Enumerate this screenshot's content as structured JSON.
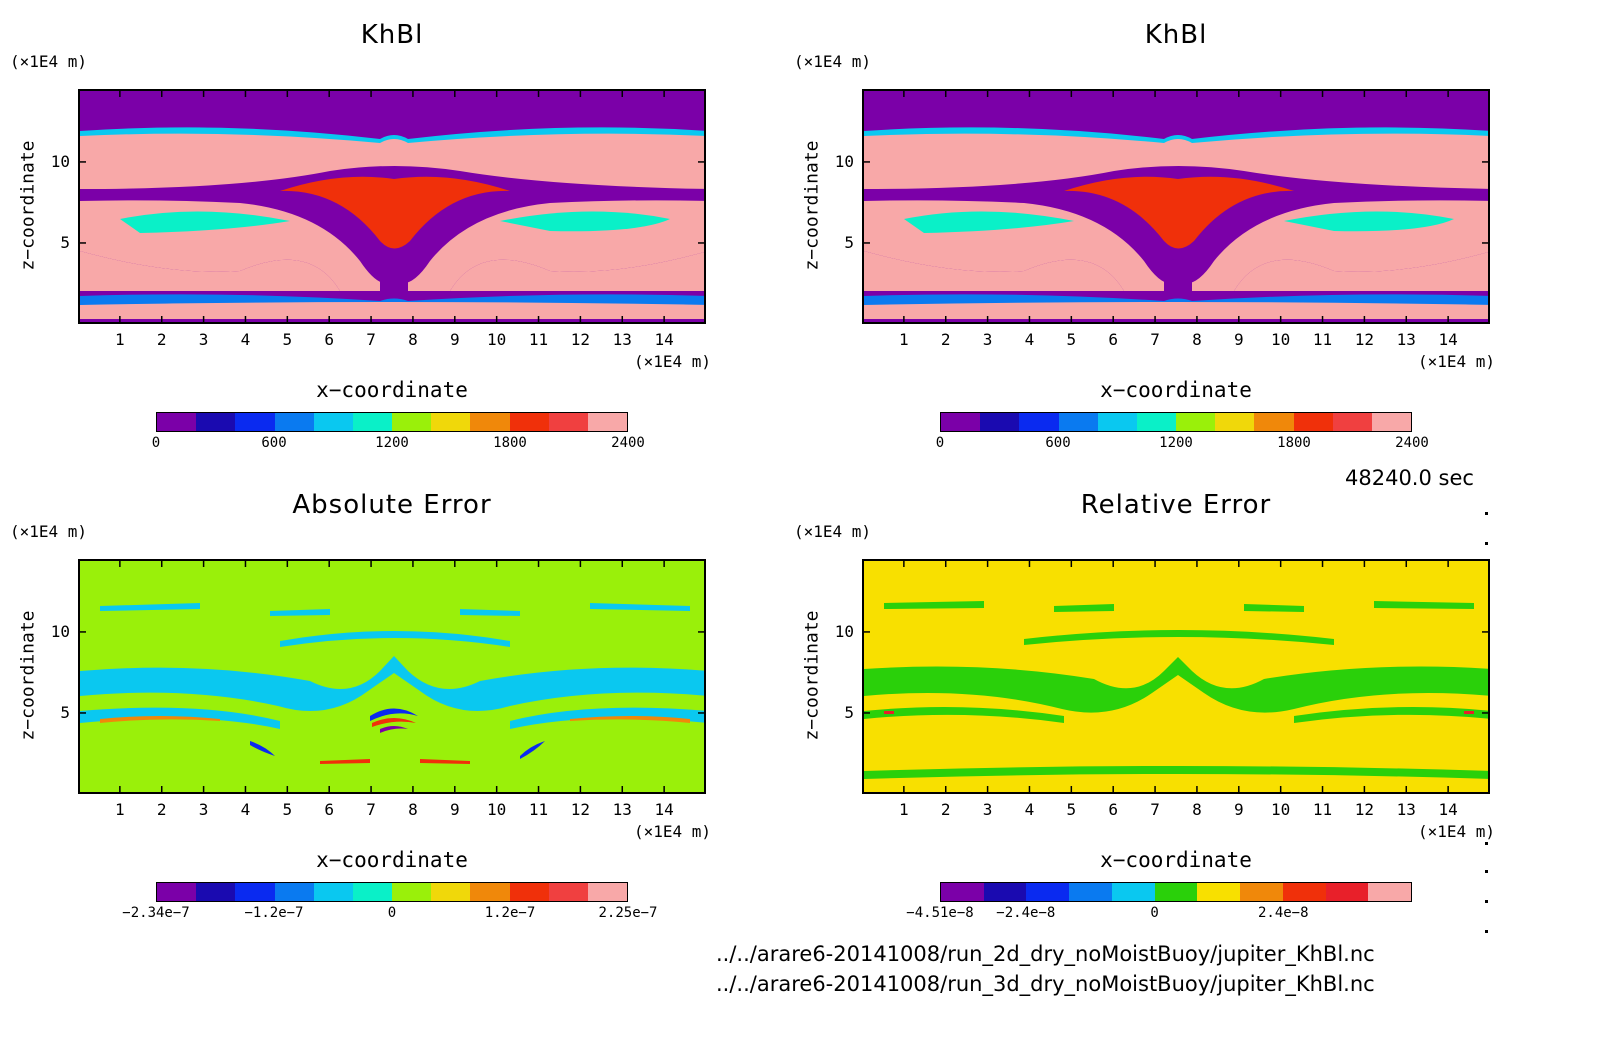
{
  "time_label": "48240.0 sec",
  "file_paths": [
    "../../arare6-20141008/run_2d_dry_noMoistBuoy/jupiter_KhBl.nc",
    "../../arare6-20141008/run_3d_dry_noMoistBuoy/jupiter_KhBl.nc"
  ],
  "chart_data": [
    {
      "type": "heatmap",
      "title": "KhBl",
      "xlabel": "x−coordinate",
      "ylabel": "z−coordinate",
      "x_unit": "(×1E4 m)",
      "y_unit": "(×1E4 m)",
      "xlim": [
        0,
        15
      ],
      "ylim": [
        0,
        14.5
      ],
      "x_ticks": [
        "1",
        "2",
        "3",
        "4",
        "5",
        "6",
        "7",
        "8",
        "9",
        "10",
        "11",
        "12",
        "13",
        "14"
      ],
      "y_ticks": [
        "5",
        "10"
      ],
      "colorbar_colors": [
        "#7b00a8",
        "#1a0ab0",
        "#0a2af0",
        "#0a7af0",
        "#0ac8f0",
        "#0af0c8",
        "#9af00a",
        "#f0d80a",
        "#f0880a",
        "#f0300a",
        "#f04040",
        "#f8a8a8"
      ],
      "colorbar_labels": [
        "0",
        "600",
        "1200",
        "1800",
        "2400"
      ],
      "pattern": "khbl"
    },
    {
      "type": "heatmap",
      "title": "KhBl",
      "xlabel": "x−coordinate",
      "ylabel": "z−coordinate",
      "x_unit": "(×1E4 m)",
      "y_unit": "(×1E4 m)",
      "xlim": [
        0,
        15
      ],
      "ylim": [
        0,
        14.5
      ],
      "x_ticks": [
        "1",
        "2",
        "3",
        "4",
        "5",
        "6",
        "7",
        "8",
        "9",
        "10",
        "11",
        "12",
        "13",
        "14"
      ],
      "y_ticks": [
        "5",
        "10"
      ],
      "colorbar_colors": [
        "#7b00a8",
        "#1a0ab0",
        "#0a2af0",
        "#0a7af0",
        "#0ac8f0",
        "#0af0c8",
        "#9af00a",
        "#f0d80a",
        "#f0880a",
        "#f0300a",
        "#f04040",
        "#f8a8a8"
      ],
      "colorbar_labels": [
        "0",
        "600",
        "1200",
        "1800",
        "2400"
      ],
      "pattern": "khbl"
    },
    {
      "type": "heatmap",
      "title": "Absolute Error",
      "xlabel": "x−coordinate",
      "ylabel": "z−coordinate",
      "x_unit": "(×1E4 m)",
      "y_unit": "(×1E4 m)",
      "xlim": [
        0,
        15
      ],
      "ylim": [
        0,
        14.5
      ],
      "x_ticks": [
        "1",
        "2",
        "3",
        "4",
        "5",
        "6",
        "7",
        "8",
        "9",
        "10",
        "11",
        "12",
        "13",
        "14"
      ],
      "y_ticks": [
        "5",
        "10"
      ],
      "colorbar_colors": [
        "#7b00a8",
        "#1a0ab0",
        "#0a2af0",
        "#0a7af0",
        "#0ac8f0",
        "#0af0c8",
        "#9af00a",
        "#f0d80a",
        "#f0880a",
        "#f0300a",
        "#f04040",
        "#f8a8a8"
      ],
      "colorbar_labels": [
        "−2.34e−7",
        "−1.2e−7",
        "0",
        "1.2e−7",
        "2.25e−7"
      ],
      "pattern": "abs"
    },
    {
      "type": "heatmap",
      "title": "Relative Error",
      "xlabel": "x−coordinate",
      "ylabel": "z−coordinate",
      "x_unit": "(×1E4 m)",
      "y_unit": "(×1E4 m)",
      "xlim": [
        0,
        15
      ],
      "ylim": [
        0,
        14.5
      ],
      "x_ticks": [
        "1",
        "2",
        "3",
        "4",
        "5",
        "6",
        "7",
        "8",
        "9",
        "10",
        "11",
        "12",
        "13",
        "14"
      ],
      "y_ticks": [
        "5",
        "10"
      ],
      "colorbar_colors": [
        "#7b00a8",
        "#1a0ab0",
        "#0a2af0",
        "#0a7af0",
        "#0ac8f0",
        "#2ad00a",
        "#f8e000",
        "#f0880a",
        "#f0300a",
        "#e8202a",
        "#f8a8a8"
      ],
      "colorbar_labels": [
        "−4.51e−8",
        "−2.4e−8",
        "0",
        "2.4e−8"
      ],
      "pattern": "rel"
    }
  ]
}
